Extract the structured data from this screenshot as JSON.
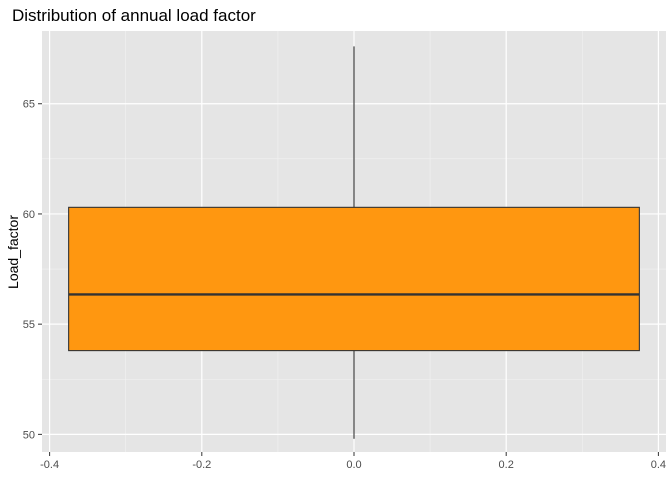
{
  "chart_data": {
    "type": "boxplot",
    "title": "Distribution of annual load factor",
    "xlabel": "",
    "ylabel": "Load_factor",
    "xlim": [
      -0.41,
      0.41
    ],
    "ylim": [
      49.2,
      68.3
    ],
    "x_ticks": [
      -0.4,
      -0.2,
      0.0,
      0.2,
      0.4
    ],
    "x_tick_labels": [
      "-0.4",
      "-0.2",
      "0.0",
      "0.2",
      "0.4"
    ],
    "y_ticks": [
      50,
      55,
      60,
      65
    ],
    "y_tick_labels": [
      "50",
      "55",
      "60",
      "65"
    ],
    "grid": true,
    "panel_background": "#e5e5e5",
    "box": {
      "x_center": 0.0,
      "x_left": -0.375,
      "x_right": 0.375,
      "whisker_low": 49.8,
      "q1": 53.8,
      "median": 56.35,
      "q3": 60.3,
      "whisker_high": 67.6,
      "fill": "#ff9710",
      "stroke": "#333333"
    }
  }
}
